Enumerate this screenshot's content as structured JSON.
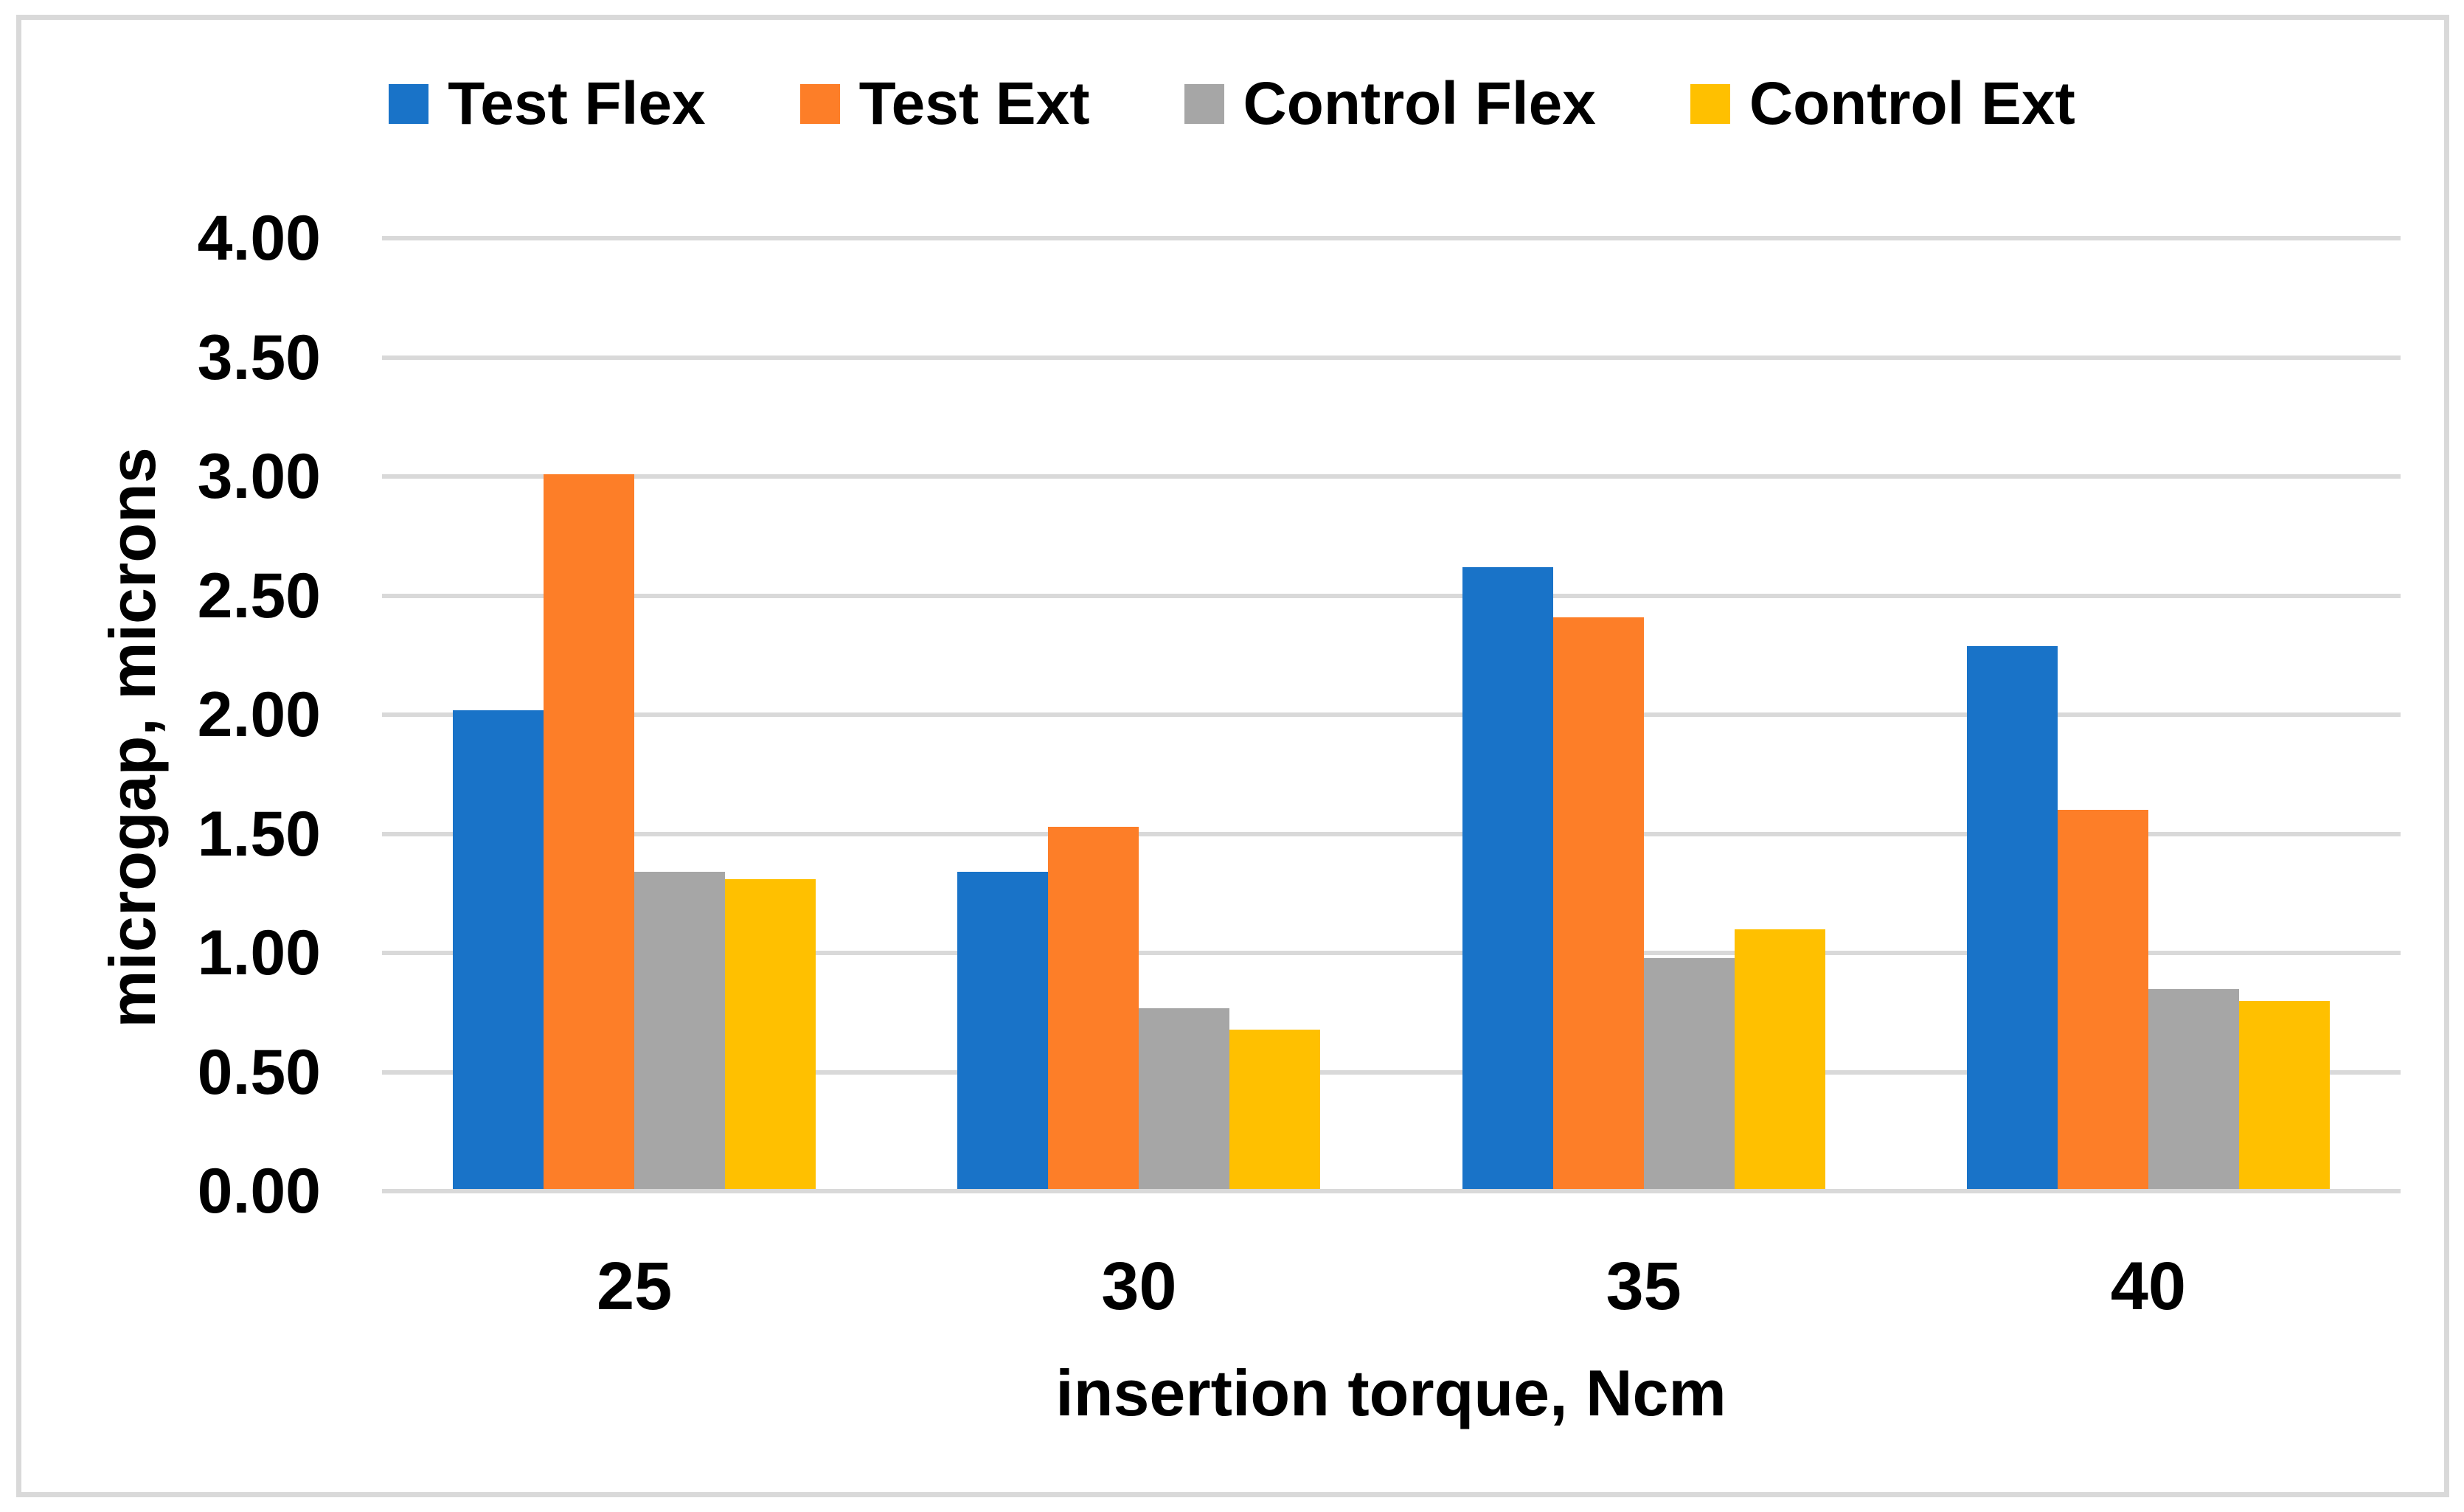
{
  "chart_data": {
    "type": "bar",
    "categories": [
      "25",
      "30",
      "35",
      "40"
    ],
    "series": [
      {
        "name": "Test Flex",
        "color": "#1973C8",
        "values": [
          2.01,
          1.33,
          2.61,
          2.28
        ]
      },
      {
        "name": "Test Ext",
        "color": "#FD7E28",
        "values": [
          3.0,
          1.52,
          2.4,
          1.59
        ]
      },
      {
        "name": "Control Flex",
        "color": "#A6A6A6",
        "values": [
          1.33,
          0.76,
          0.97,
          0.84
        ]
      },
      {
        "name": "Control Ext",
        "color": "#FFC000",
        "values": [
          1.3,
          0.67,
          1.09,
          0.79
        ]
      }
    ],
    "title": "",
    "xlabel": "insertion torque, Ncm",
    "ylabel": "microgap, microns",
    "ylim": [
      0,
      4
    ],
    "ytick_step": 0.5,
    "ytick_labels": [
      "0.00",
      "0.50",
      "1.00",
      "1.50",
      "2.00",
      "2.50",
      "3.00",
      "3.50",
      "4.00"
    ],
    "grid": true,
    "legend_position": "top",
    "gridline_color": "#D9D9D9",
    "frame_color": "#D9D9D9",
    "text_color": "#000000"
  }
}
